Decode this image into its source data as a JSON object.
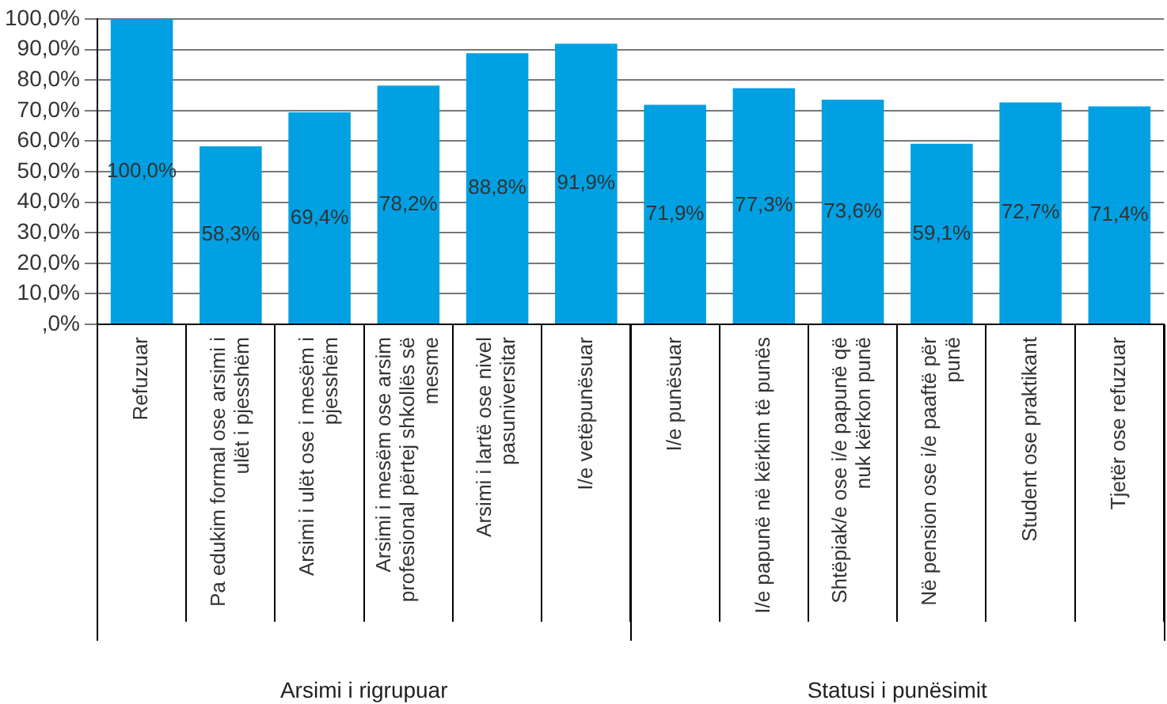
{
  "chart_data": {
    "type": "bar",
    "categories": [
      "Refuzuar",
      "Pa edukim formal ose arsimi i ulët i pjesshëm",
      "Arsimi i ulët ose i mesëm i pjesshëm",
      "Arsimi i mesëm ose arsim profesional përtej shkollës së mesme",
      "Arsimi i lartë ose nivel pasuniversitar",
      "I/e vetëpunësuar",
      "I/e punësuar",
      "I/e papunë në kërkim të punës",
      "Shtëpiak/e ose i/e papunë që nuk kërkon punë",
      "Në pension ose i/e paaftë për punë",
      "Student ose praktikant",
      "Tjetër ose refuzuar"
    ],
    "values": [
      100,
      58.3,
      69.4,
      78.2,
      88.8,
      91.9,
      71.9,
      77.3,
      73.6,
      59.1,
      72.7,
      71.4
    ],
    "value_labels": [
      "100,0%",
      "58,3%",
      "69,4%",
      "78,2%",
      "88,8%",
      "91,9%",
      "71,9%",
      "77,3%",
      "73,6%",
      "59,1%",
      "72,7%",
      "71,4%"
    ],
    "color": "#00a0e3",
    "ylim": [
      0,
      100
    ],
    "yticks": [
      {
        "value": 0,
        "label": ",0%"
      },
      {
        "value": 10,
        "label": "10,0%"
      },
      {
        "value": 20,
        "label": "20,0%"
      },
      {
        "value": 30,
        "label": "30,0%"
      },
      {
        "value": 40,
        "label": "40,0%"
      },
      {
        "value": 50,
        "label": "50,0%"
      },
      {
        "value": 60,
        "label": "60,0%"
      },
      {
        "value": 70,
        "label": "70,0%"
      },
      {
        "value": 80,
        "label": "80,0%"
      },
      {
        "value": 90,
        "label": "90,0%"
      },
      {
        "value": 100,
        "label": "100,0%"
      }
    ],
    "grid": "y",
    "annotations": [
      "Arsimi i rigrupuar",
      "Statusi i punësimit"
    ]
  }
}
